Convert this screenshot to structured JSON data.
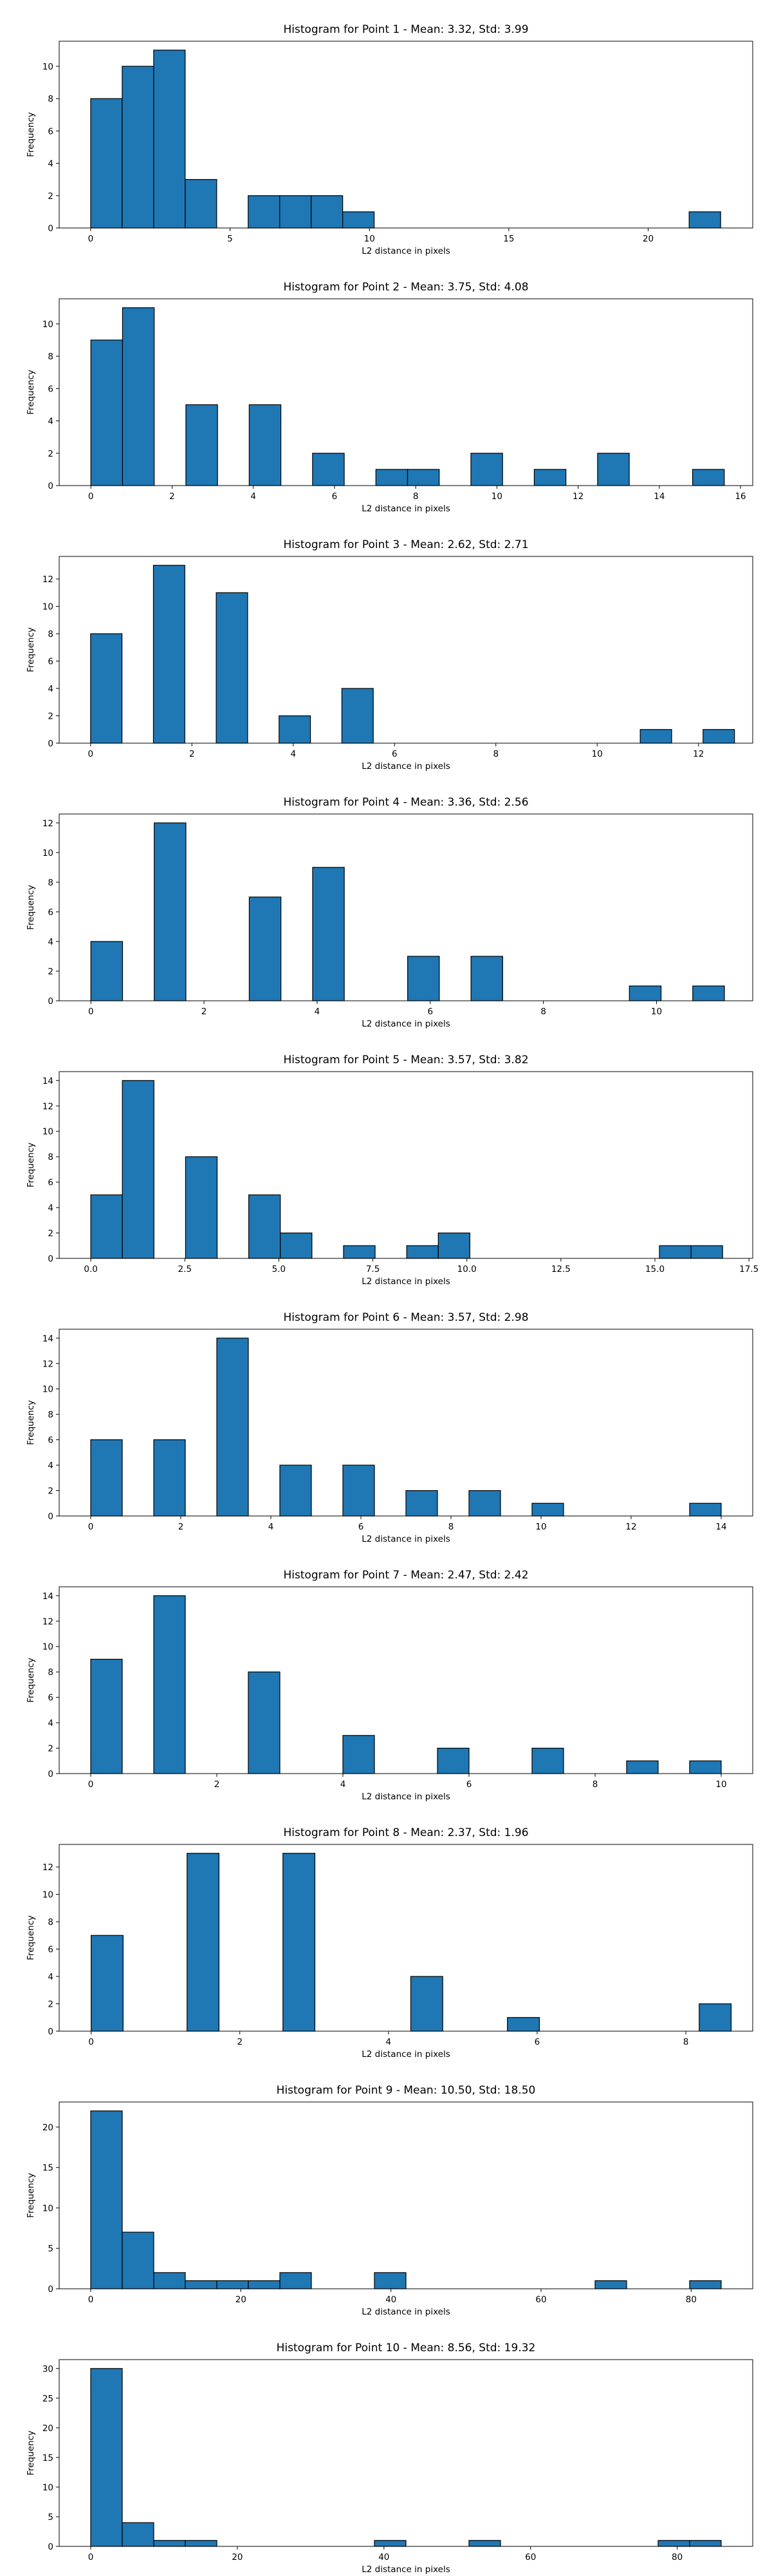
{
  "chart_data": [
    {
      "type": "bar",
      "title": "Histogram for Point 1 - Mean: 3.32, Std: 3.99",
      "xlabel": "L2 distance in pixels",
      "ylabel": "Frequency",
      "xlim": [
        -1.13,
        23.75
      ],
      "ylim": [
        0,
        11.55
      ],
      "xticks": [
        0,
        5,
        10,
        15,
        20
      ],
      "xtick_labels": [
        "0",
        "5",
        "10",
        "15",
        "20"
      ],
      "yticks": [
        0,
        2,
        4,
        6,
        8,
        10
      ],
      "ytick_labels": [
        "0",
        "2",
        "4",
        "6",
        "8",
        "10"
      ],
      "bin_width": 1.13,
      "bars": [
        {
          "x": 0.0,
          "value": 8
        },
        {
          "x": 1.13,
          "value": 10
        },
        {
          "x": 2.26,
          "value": 11
        },
        {
          "x": 3.39,
          "value": 3
        },
        {
          "x": 5.65,
          "value": 2
        },
        {
          "x": 6.78,
          "value": 2
        },
        {
          "x": 7.91,
          "value": 2
        },
        {
          "x": 9.04,
          "value": 1
        },
        {
          "x": 21.47,
          "value": 1
        }
      ]
    },
    {
      "type": "bar",
      "title": "Histogram for Point 2 - Mean: 3.75, Std: 4.08",
      "xlabel": "L2 distance in pixels",
      "ylabel": "Frequency",
      "xlim": [
        -0.78,
        16.3
      ],
      "ylim": [
        0,
        11.55
      ],
      "xticks": [
        0,
        2,
        4,
        6,
        8,
        10,
        12,
        14,
        16
      ],
      "xtick_labels": [
        "0",
        "2",
        "4",
        "6",
        "8",
        "10",
        "12",
        "14",
        "16"
      ],
      "yticks": [
        0,
        2,
        4,
        6,
        8,
        10
      ],
      "ytick_labels": [
        "0",
        "2",
        "4",
        "6",
        "8",
        "10"
      ],
      "bin_width": 0.78,
      "bars": [
        {
          "x": 0.0,
          "value": 9
        },
        {
          "x": 0.78,
          "value": 11
        },
        {
          "x": 2.34,
          "value": 5
        },
        {
          "x": 3.9,
          "value": 5
        },
        {
          "x": 5.46,
          "value": 2
        },
        {
          "x": 7.02,
          "value": 1
        },
        {
          "x": 7.8,
          "value": 1
        },
        {
          "x": 9.36,
          "value": 2
        },
        {
          "x": 10.92,
          "value": 1
        },
        {
          "x": 12.48,
          "value": 2
        },
        {
          "x": 14.82,
          "value": 1
        }
      ]
    },
    {
      "type": "bar",
      "title": "Histogram for Point 3 - Mean: 2.62, Std: 2.71",
      "xlabel": "L2 distance in pixels",
      "ylabel": "Frequency",
      "xlim": [
        -0.62,
        13.07
      ],
      "ylim": [
        0,
        13.65
      ],
      "xticks": [
        0,
        2,
        4,
        6,
        8,
        10,
        12
      ],
      "xtick_labels": [
        "0",
        "2",
        "4",
        "6",
        "8",
        "10",
        "12"
      ],
      "yticks": [
        0,
        2,
        4,
        6,
        8,
        10,
        12
      ],
      "ytick_labels": [
        "0",
        "2",
        "4",
        "6",
        "8",
        "10",
        "12"
      ],
      "bin_width": 0.62,
      "bars": [
        {
          "x": 0.0,
          "value": 8
        },
        {
          "x": 1.24,
          "value": 13
        },
        {
          "x": 2.48,
          "value": 11
        },
        {
          "x": 3.72,
          "value": 2
        },
        {
          "x": 4.96,
          "value": 4
        },
        {
          "x": 10.85,
          "value": 1
        },
        {
          "x": 12.09,
          "value": 1
        }
      ]
    },
    {
      "type": "bar",
      "title": "Histogram for Point 4 - Mean: 3.36, Std: 2.56",
      "xlabel": "L2 distance in pixels",
      "ylabel": "Frequency",
      "xlim": [
        -0.56,
        11.7
      ],
      "ylim": [
        0,
        12.6
      ],
      "xticks": [
        0,
        2,
        4,
        6,
        8,
        10
      ],
      "xtick_labels": [
        "0",
        "2",
        "4",
        "6",
        "8",
        "10"
      ],
      "yticks": [
        0,
        2,
        4,
        6,
        8,
        10,
        12
      ],
      "ytick_labels": [
        "0",
        "2",
        "4",
        "6",
        "8",
        "10",
        "12"
      ],
      "bin_width": 0.56,
      "bars": [
        {
          "x": 0.0,
          "value": 4
        },
        {
          "x": 1.12,
          "value": 12
        },
        {
          "x": 2.8,
          "value": 7
        },
        {
          "x": 3.92,
          "value": 9
        },
        {
          "x": 5.6,
          "value": 3
        },
        {
          "x": 6.72,
          "value": 3
        },
        {
          "x": 9.52,
          "value": 1
        },
        {
          "x": 10.64,
          "value": 1
        }
      ]
    },
    {
      "type": "bar",
      "title": "Histogram for Point 5 - Mean: 3.57, Std: 3.82",
      "xlabel": "L2 distance in pixels",
      "ylabel": "Frequency",
      "xlim": [
        -0.84,
        17.6
      ],
      "ylim": [
        0,
        14.7
      ],
      "xticks": [
        0,
        2.5,
        5,
        7.5,
        10,
        12.5,
        15,
        17.5
      ],
      "xtick_labels": [
        "0.0",
        "2.5",
        "5.0",
        "7.5",
        "10.0",
        "12.5",
        "15.0",
        "17.5"
      ],
      "yticks": [
        0,
        2,
        4,
        6,
        8,
        10,
        12,
        14
      ],
      "ytick_labels": [
        "0",
        "2",
        "4",
        "6",
        "8",
        "10",
        "12",
        "14"
      ],
      "bin_width": 0.84,
      "bars": [
        {
          "x": 0.0,
          "value": 5
        },
        {
          "x": 0.84,
          "value": 14
        },
        {
          "x": 2.52,
          "value": 8
        },
        {
          "x": 4.2,
          "value": 5
        },
        {
          "x": 5.04,
          "value": 2
        },
        {
          "x": 6.72,
          "value": 1
        },
        {
          "x": 8.4,
          "value": 1
        },
        {
          "x": 9.24,
          "value": 2
        },
        {
          "x": 15.12,
          "value": 1
        },
        {
          "x": 15.96,
          "value": 1
        }
      ]
    },
    {
      "type": "bar",
      "title": "Histogram for Point 6 - Mean: 3.57, Std: 2.98",
      "xlabel": "L2 distance in pixels",
      "ylabel": "Frequency",
      "xlim": [
        -0.7,
        14.7
      ],
      "ylim": [
        0,
        14.7
      ],
      "xticks": [
        0,
        2,
        4,
        6,
        8,
        10,
        12,
        14
      ],
      "xtick_labels": [
        "0",
        "2",
        "4",
        "6",
        "8",
        "10",
        "12",
        "14"
      ],
      "yticks": [
        0,
        2,
        4,
        6,
        8,
        10,
        12,
        14
      ],
      "ytick_labels": [
        "0",
        "2",
        "4",
        "6",
        "8",
        "10",
        "12",
        "14"
      ],
      "bin_width": 0.7,
      "bars": [
        {
          "x": 0.0,
          "value": 6
        },
        {
          "x": 1.4,
          "value": 6
        },
        {
          "x": 2.8,
          "value": 14
        },
        {
          "x": 4.2,
          "value": 4
        },
        {
          "x": 5.6,
          "value": 4
        },
        {
          "x": 7.0,
          "value": 2
        },
        {
          "x": 8.4,
          "value": 2
        },
        {
          "x": 9.8,
          "value": 1
        },
        {
          "x": 13.3,
          "value": 1
        }
      ]
    },
    {
      "type": "bar",
      "title": "Histogram for Point 7 - Mean: 2.47, Std: 2.42",
      "xlabel": "L2 distance in pixels",
      "ylabel": "Frequency",
      "xlim": [
        -0.5,
        10.5
      ],
      "ylim": [
        0,
        14.7
      ],
      "xticks": [
        0,
        2,
        4,
        6,
        8,
        10
      ],
      "xtick_labels": [
        "0",
        "2",
        "4",
        "6",
        "8",
        "10"
      ],
      "yticks": [
        0,
        2,
        4,
        6,
        8,
        10,
        12,
        14
      ],
      "ytick_labels": [
        "0",
        "2",
        "4",
        "6",
        "8",
        "10",
        "12",
        "14"
      ],
      "bin_width": 0.5,
      "bars": [
        {
          "x": 0.0,
          "value": 9
        },
        {
          "x": 1.0,
          "value": 14
        },
        {
          "x": 2.5,
          "value": 8
        },
        {
          "x": 4.0,
          "value": 3
        },
        {
          "x": 5.5,
          "value": 2
        },
        {
          "x": 7.0,
          "value": 2
        },
        {
          "x": 8.5,
          "value": 1
        },
        {
          "x": 9.5,
          "value": 1
        }
      ]
    },
    {
      "type": "bar",
      "title": "Histogram for Point 8 - Mean: 2.37, Std: 1.96",
      "xlabel": "L2 distance in pixels",
      "ylabel": "Frequency",
      "xlim": [
        -0.43,
        8.9
      ],
      "ylim": [
        0,
        13.65
      ],
      "xticks": [
        0,
        2,
        4,
        6,
        8
      ],
      "xtick_labels": [
        "0",
        "2",
        "4",
        "6",
        "8"
      ],
      "yticks": [
        0,
        2,
        4,
        6,
        8,
        10,
        12
      ],
      "ytick_labels": [
        "0",
        "2",
        "4",
        "6",
        "8",
        "10",
        "12"
      ],
      "bin_width": 0.43,
      "bars": [
        {
          "x": 0.0,
          "value": 7
        },
        {
          "x": 1.29,
          "value": 13
        },
        {
          "x": 2.58,
          "value": 13
        },
        {
          "x": 4.3,
          "value": 4
        },
        {
          "x": 5.6,
          "value": 1
        },
        {
          "x": 8.18,
          "value": 2
        }
      ]
    },
    {
      "type": "bar",
      "title": "Histogram for Point 9 - Mean: 10.50, Std: 18.50",
      "xlabel": "L2 distance in pixels",
      "ylabel": "Frequency",
      "xlim": [
        -4.2,
        88.2
      ],
      "ylim": [
        0,
        23.1
      ],
      "xticks": [
        0,
        20,
        40,
        60,
        80
      ],
      "xtick_labels": [
        "0",
        "20",
        "40",
        "60",
        "80"
      ],
      "yticks": [
        0,
        5,
        10,
        15,
        20
      ],
      "ytick_labels": [
        "0",
        "5",
        "10",
        "15",
        "20"
      ],
      "bin_width": 4.2,
      "bars": [
        {
          "x": 0.0,
          "value": 22
        },
        {
          "x": 4.2,
          "value": 7
        },
        {
          "x": 8.4,
          "value": 2
        },
        {
          "x": 12.6,
          "value": 1
        },
        {
          "x": 16.8,
          "value": 1
        },
        {
          "x": 21.0,
          "value": 1
        },
        {
          "x": 25.2,
          "value": 2
        },
        {
          "x": 37.8,
          "value": 2
        },
        {
          "x": 67.2,
          "value": 1
        },
        {
          "x": 79.8,
          "value": 1
        }
      ]
    },
    {
      "type": "bar",
      "title": "Histogram for Point 10 - Mean: 8.56, Std: 19.32",
      "xlabel": "L2 distance in pixels",
      "ylabel": "Frequency",
      "xlim": [
        -4.3,
        90.3
      ],
      "ylim": [
        0,
        31.5
      ],
      "xticks": [
        0,
        20,
        40,
        60,
        80
      ],
      "xtick_labels": [
        "0",
        "20",
        "40",
        "60",
        "80"
      ],
      "yticks": [
        0,
        5,
        10,
        15,
        20,
        25,
        30
      ],
      "ytick_labels": [
        "0",
        "5",
        "10",
        "15",
        "20",
        "25",
        "30"
      ],
      "bin_width": 4.3,
      "bars": [
        {
          "x": 0.0,
          "value": 30
        },
        {
          "x": 4.3,
          "value": 4
        },
        {
          "x": 8.6,
          "value": 1
        },
        {
          "x": 12.9,
          "value": 1
        },
        {
          "x": 38.7,
          "value": 1
        },
        {
          "x": 51.6,
          "value": 1
        },
        {
          "x": 77.4,
          "value": 1
        },
        {
          "x": 81.7,
          "value": 1
        }
      ]
    }
  ]
}
